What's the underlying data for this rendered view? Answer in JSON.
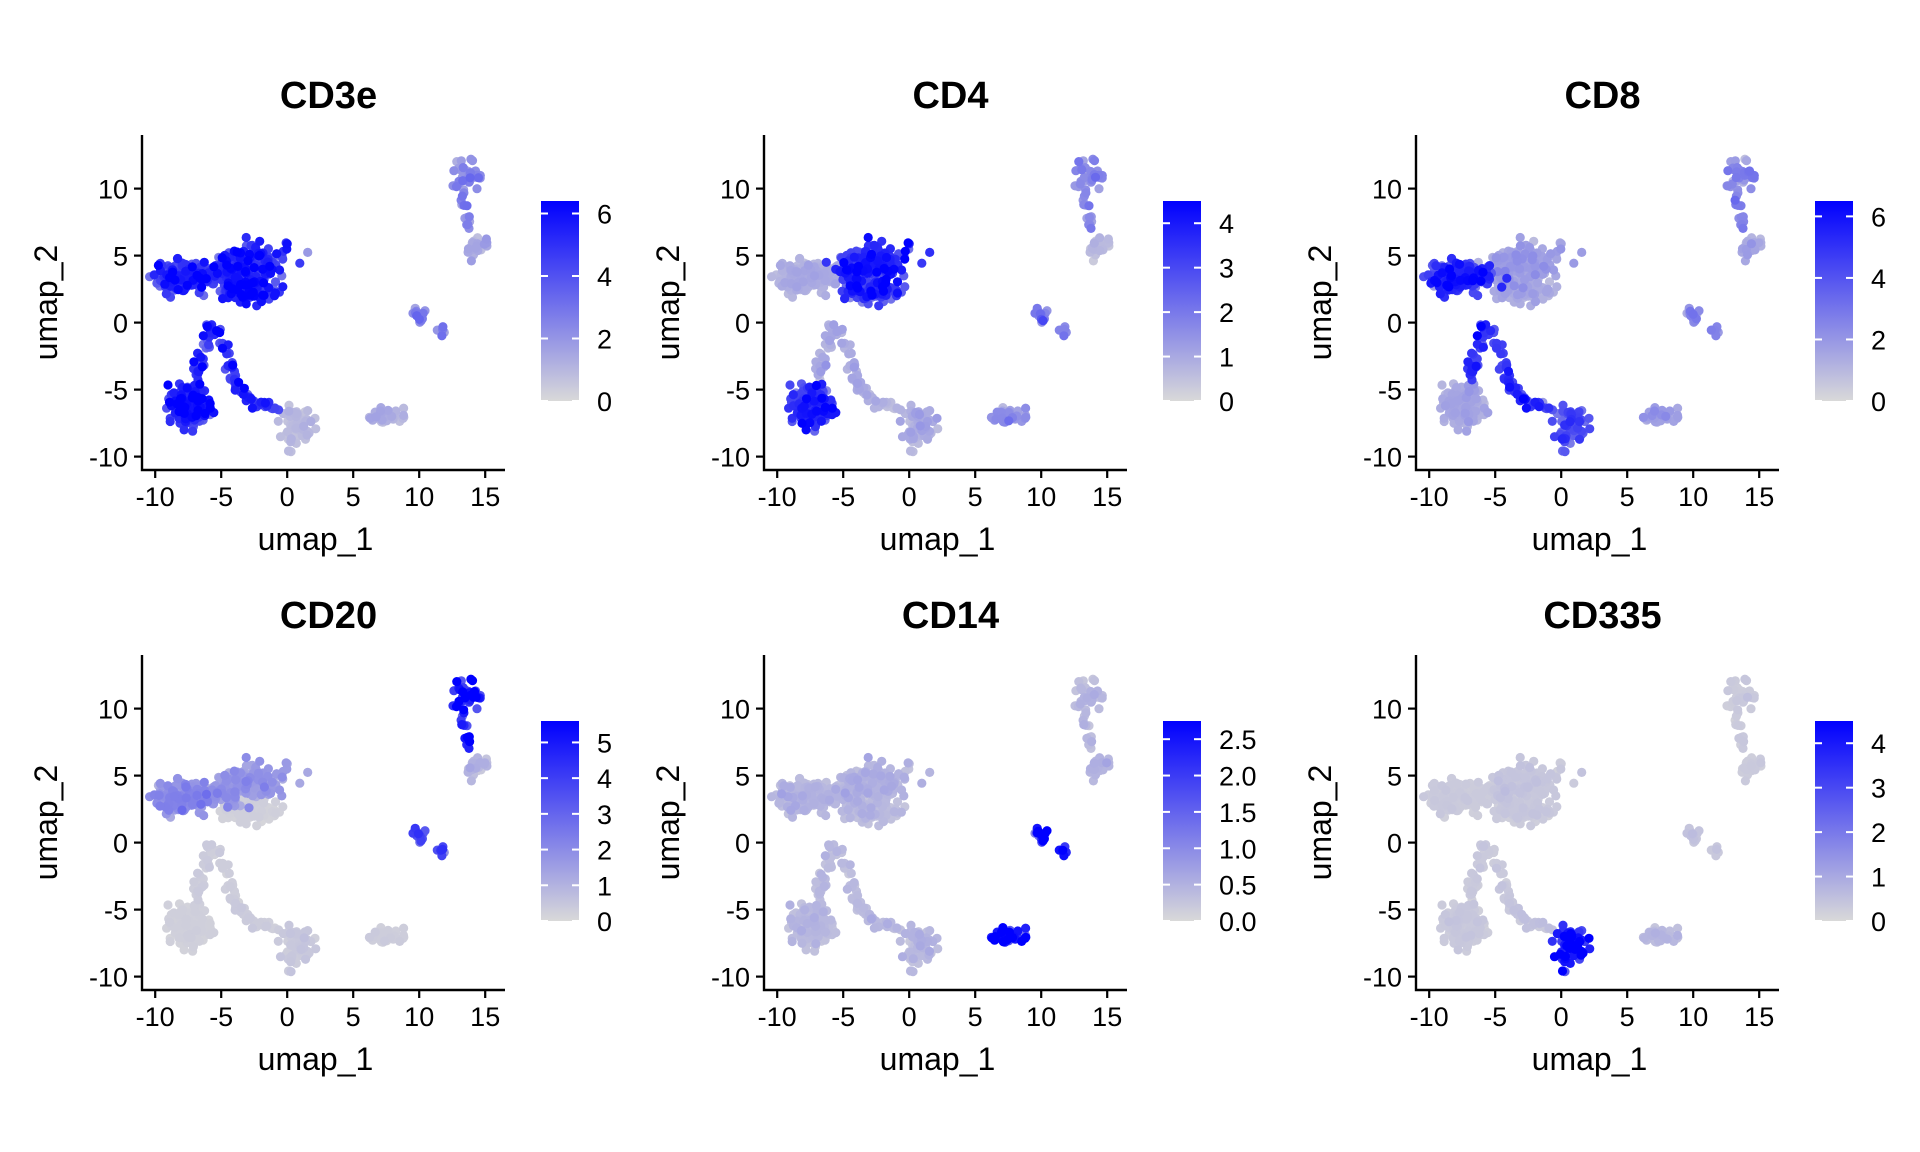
{
  "colors": {
    "low": "#d9d9d9",
    "high": "#0000ff"
  },
  "chart_data": [
    {
      "type": "scatter",
      "title": "CD3e",
      "xlabel": "umap_1",
      "ylabel": "umap_2",
      "xlim": [
        -11,
        16.5
      ],
      "ylim": [
        -11,
        14
      ],
      "xticks": [
        "-10",
        "-5",
        "0",
        "5",
        "10",
        "15"
      ],
      "yticks": [
        "-10",
        "-5",
        "0",
        "5",
        "10"
      ],
      "legend": {
        "range": [
          0,
          6.4
        ],
        "ticks": [
          "0",
          "2",
          "4",
          "6"
        ]
      },
      "cluster_levels": {
        "naive_t": 4.5,
        "cd4_t": 4.8,
        "branch": 4.6,
        "cd8_t": 5.2,
        "bridge": 4.7,
        "monocyte": 0.8,
        "nk": 1.1,
        "dc": 2.5,
        "b_top": 2.3,
        "b_bottom": 1.3
      },
      "grid": false,
      "legend_placement": "right"
    },
    {
      "type": "scatter",
      "title": "CD4",
      "xlabel": "umap_1",
      "ylabel": "umap_2",
      "xlim": [
        -11,
        16.5
      ],
      "ylim": [
        -11,
        14
      ],
      "xticks": [
        "-10",
        "-5",
        "0",
        "5",
        "10",
        "15"
      ],
      "yticks": [
        "-10",
        "-5",
        "0",
        "5",
        "10"
      ],
      "legend": {
        "range": [
          0,
          4.5
        ],
        "ticks": [
          "0",
          "1",
          "2",
          "3",
          "4"
        ]
      },
      "cluster_levels": {
        "naive_t": 0.8,
        "cd4_t": 3.4,
        "branch": 0.9,
        "cd8_t": 3.2,
        "bridge": 0.7,
        "monocyte": 0.9,
        "nk": 1.4,
        "dc": 1.8,
        "b_top": 1.5,
        "b_bottom": 0.6
      },
      "grid": false,
      "legend_placement": "right"
    },
    {
      "type": "scatter",
      "title": "CD8",
      "xlabel": "umap_1",
      "ylabel": "umap_2",
      "xlim": [
        -11,
        16.5
      ],
      "ylim": [
        -11,
        14
      ],
      "xticks": [
        "-10",
        "-5",
        "0",
        "5",
        "10",
        "15"
      ],
      "yticks": [
        "-10",
        "-5",
        "0",
        "5",
        "10"
      ],
      "legend": {
        "range": [
          0,
          6.5
        ],
        "ticks": [
          "0",
          "2",
          "4",
          "6"
        ]
      },
      "cluster_levels": {
        "naive_t": 4.6,
        "cd4_t": 1.6,
        "branch": 4.8,
        "cd8_t": 1.3,
        "bridge": 4.9,
        "monocyte": 3.8,
        "nk": 1.6,
        "dc": 2.4,
        "b_top": 2.6,
        "b_bottom": 1.4
      },
      "grid": false,
      "legend_placement": "right"
    },
    {
      "type": "scatter",
      "title": "CD20",
      "xlabel": "umap_1",
      "ylabel": "umap_2",
      "xlim": [
        -11,
        16.5
      ],
      "ylim": [
        -11,
        14
      ],
      "xticks": [
        "-10",
        "-5",
        "0",
        "5",
        "10",
        "15"
      ],
      "yticks": [
        "-10",
        "-5",
        "0",
        "5",
        "10"
      ],
      "legend": {
        "range": [
          0,
          5.6
        ],
        "ticks": [
          "0",
          "1",
          "2",
          "3",
          "4",
          "5"
        ]
      },
      "cluster_levels": {
        "naive_t": 1.8,
        "cd4_t": 1.6,
        "branch": 0.3,
        "cd8_t": 0.2,
        "bridge": 0.3,
        "monocyte": 0.4,
        "nk": 0.3,
        "dc": 3.2,
        "b_top": 5.0,
        "b_bottom": 0.9
      },
      "grid": false,
      "legend_placement": "right"
    },
    {
      "type": "scatter",
      "title": "CD14",
      "xlabel": "umap_1",
      "ylabel": "umap_2",
      "xlim": [
        -11,
        16.5
      ],
      "ylim": [
        -11,
        14
      ],
      "xticks": [
        "-10",
        "-5",
        "0",
        "5",
        "10",
        "15"
      ],
      "yticks": [
        "-10",
        "-5",
        "0",
        "5",
        "10"
      ],
      "legend": {
        "range": [
          0,
          2.75
        ],
        "ticks": [
          "0.0",
          "0.5",
          "1.0",
          "1.5",
          "2.0",
          "2.5"
        ]
      },
      "cluster_levels": {
        "naive_t": 0.4,
        "cd4_t": 0.45,
        "branch": 0.35,
        "cd8_t": 0.35,
        "bridge": 0.4,
        "monocyte": 0.4,
        "nk": 2.2,
        "dc": 2.6,
        "b_top": 0.4,
        "b_bottom": 0.45
      },
      "grid": false,
      "legend_placement": "right"
    },
    {
      "type": "scatter",
      "title": "CD335",
      "xlabel": "umap_1",
      "ylabel": "umap_2",
      "xlim": [
        -11,
        16.5
      ],
      "ylim": [
        -11,
        14
      ],
      "xticks": [
        "-10",
        "-5",
        "0",
        "5",
        "10",
        "15"
      ],
      "yticks": [
        "-10",
        "-5",
        "0",
        "5",
        "10"
      ],
      "legend": {
        "range": [
          0,
          4.5
        ],
        "ticks": [
          "0",
          "1",
          "2",
          "3",
          "4"
        ]
      },
      "cluster_levels": {
        "naive_t": 0.25,
        "cd4_t": 0.35,
        "branch": 0.3,
        "cd8_t": 0.3,
        "bridge": 0.4,
        "monocyte": 3.9,
        "nk": 0.6,
        "dc": 0.4,
        "b_top": 0.3,
        "b_bottom": 0.25
      },
      "grid": false,
      "legend_placement": "right"
    }
  ]
}
